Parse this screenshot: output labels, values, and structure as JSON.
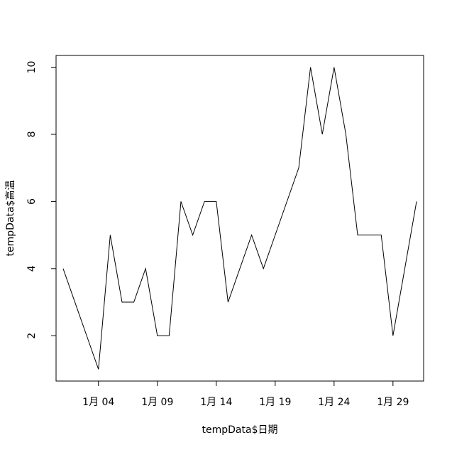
{
  "chart_data": {
    "type": "line",
    "title": "",
    "xlabel": "tempData$日期",
    "ylabel": "tempData$高温",
    "x_days": [
      1,
      2,
      3,
      4,
      5,
      6,
      7,
      8,
      9,
      10,
      11,
      12,
      13,
      14,
      15,
      16,
      17,
      18,
      19,
      20,
      21,
      22,
      23,
      24,
      25,
      26,
      27,
      28,
      29,
      30,
      31
    ],
    "series": [
      {
        "values": [
          4,
          3,
          2,
          1,
          5,
          3,
          3,
          4,
          2,
          2,
          6,
          5,
          6,
          6,
          3,
          4,
          5,
          4,
          5,
          6,
          7,
          10,
          8,
          10,
          8,
          5,
          5,
          5,
          2,
          4,
          6
        ]
      }
    ],
    "xlim": [
      0.4,
      31.6
    ],
    "ylim": [
      0.65,
      10.35
    ],
    "x_ticks": [
      4,
      9,
      14,
      19,
      24,
      29
    ],
    "x_tick_labels": [
      "1月 04",
      "1月 09",
      "1月 14",
      "1月 19",
      "1月 24",
      "1月 29"
    ],
    "y_ticks": [
      2,
      4,
      6,
      8,
      10
    ],
    "y_tick_labels": [
      "2",
      "4",
      "6",
      "8",
      "10"
    ],
    "grid": false,
    "line_color": "#000000"
  }
}
